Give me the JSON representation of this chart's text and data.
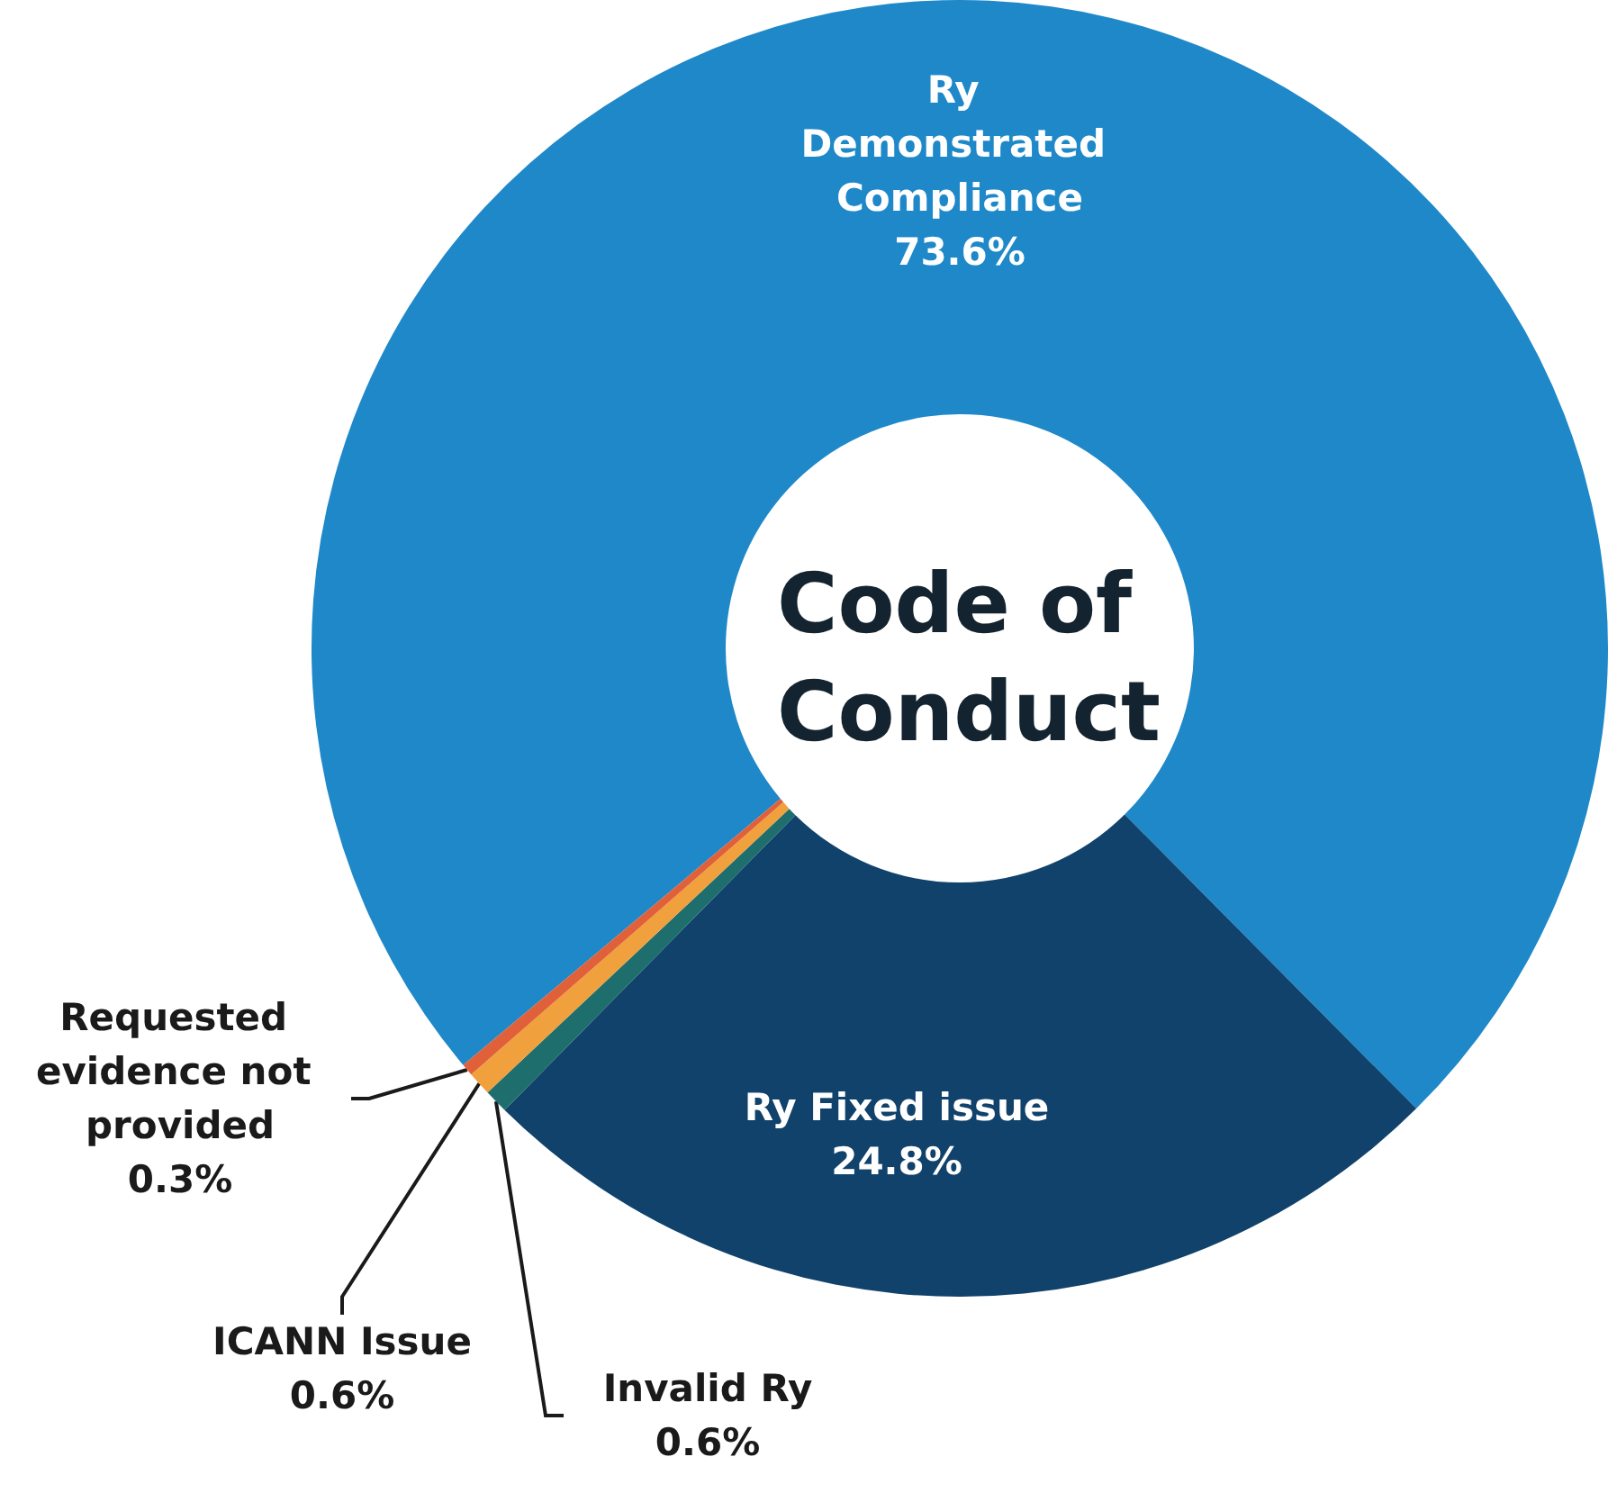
{
  "chart_data": {
    "type": "donut",
    "title": "Code of Conduct",
    "categories": [
      "Ry Demonstrated Compliance",
      "Ry Fixed issue",
      "Invalid Ry",
      "ICANN Issue",
      "Requested evidence not provided"
    ],
    "values": [
      73.6,
      24.8,
      0.6,
      0.6,
      0.3
    ],
    "colors": [
      "#1e88c9",
      "#11426b",
      "#1f6e6e",
      "#f0a03c",
      "#e0603a"
    ],
    "value_labels": [
      "73.6%",
      "24.8%",
      "0.6%",
      "0.6%",
      "0.3%"
    ]
  }
}
